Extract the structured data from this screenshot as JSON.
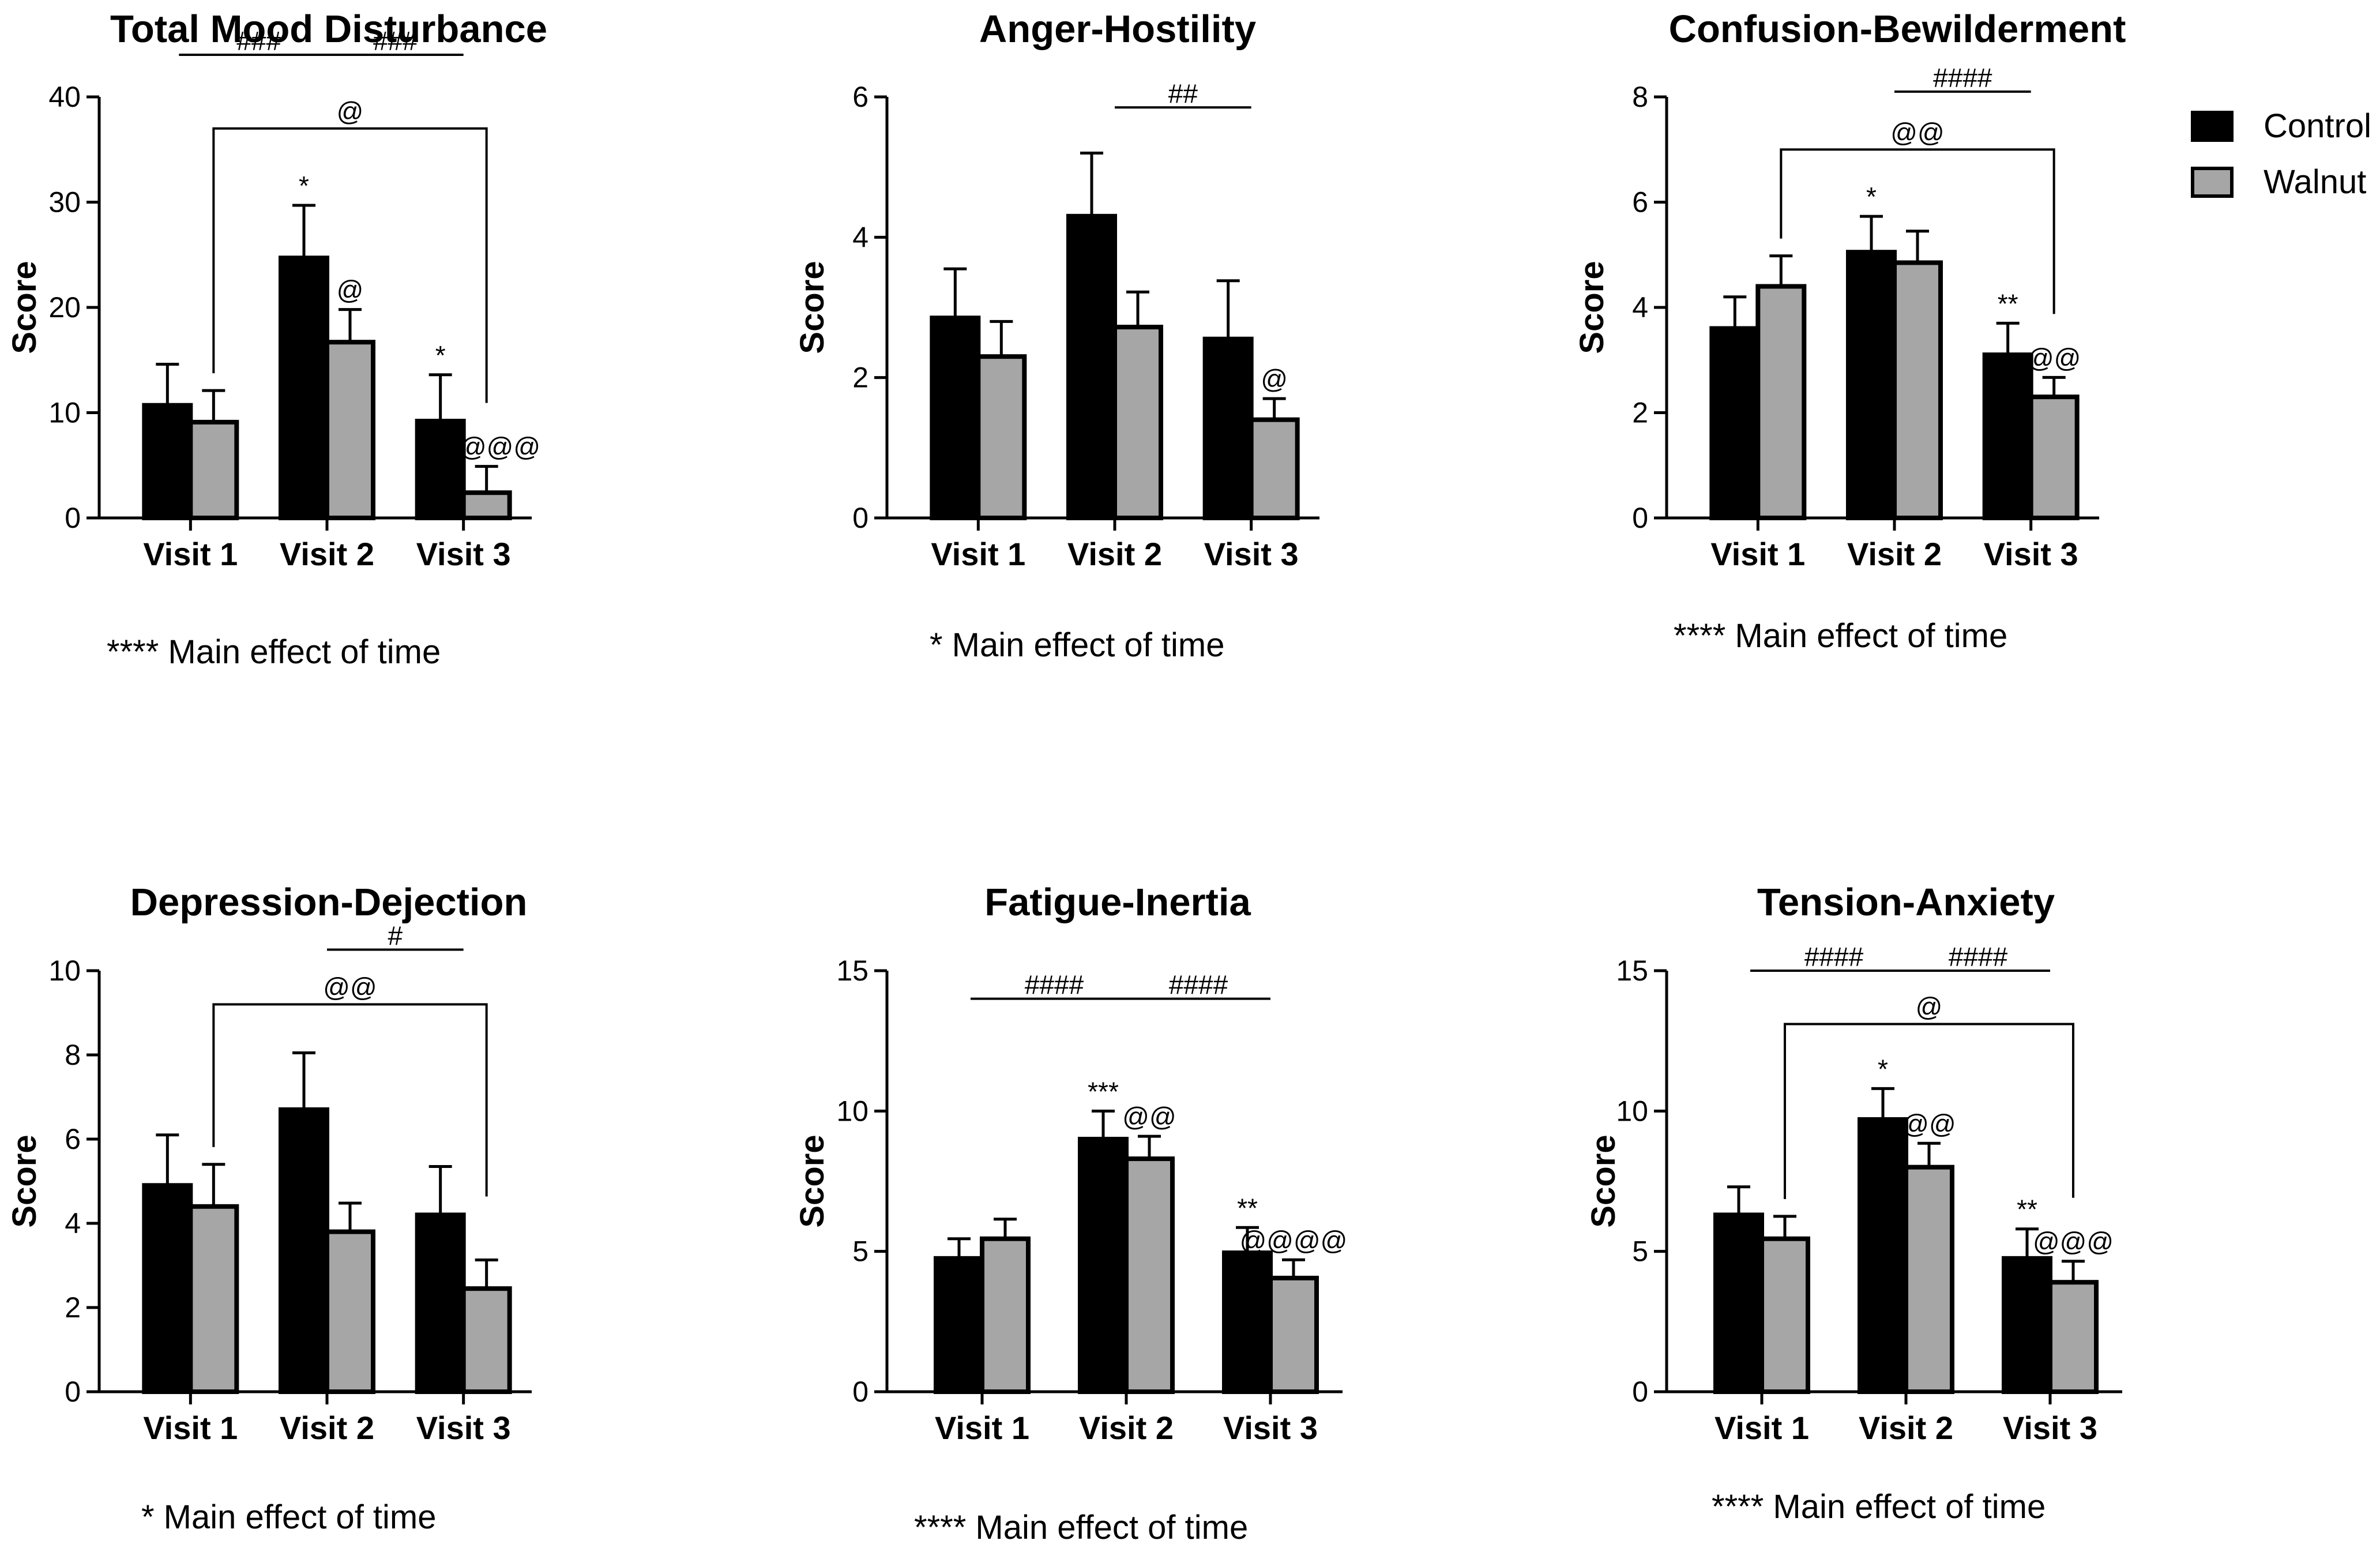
{
  "colors": {
    "control": "#000000",
    "walnut": "#a6a6a6",
    "stroke": "#000000"
  },
  "legend": [
    {
      "name": "Control",
      "color": "#000000"
    },
    {
      "name": "Walnut",
      "color": "#a6a6a6"
    }
  ],
  "chart_data": [
    {
      "type": "bar",
      "title": "Total Mood Disturbance",
      "ylabel": "Score",
      "categories": [
        "Visit 1",
        "Visit 2",
        "Visit 3"
      ],
      "ylim": [
        0,
        40
      ],
      "yticks": [
        0,
        10,
        20,
        30,
        40
      ],
      "series": [
        {
          "name": "Control",
          "values": [
            10.7,
            24.7,
            9.2
          ],
          "errors": [
            3.9,
            5.0,
            4.4
          ]
        },
        {
          "name": "Walnut",
          "values": [
            9.1,
            16.7,
            2.4
          ],
          "errors": [
            3.0,
            3.1,
            2.5
          ]
        }
      ],
      "bar_labels": [
        {
          "cat": 1,
          "series": 0,
          "text": "*"
        },
        {
          "cat": 1,
          "series": 1,
          "text": "@"
        },
        {
          "cat": 2,
          "series": 0,
          "text": "*"
        },
        {
          "cat": 2,
          "series": 1,
          "text": "@@@@"
        }
      ],
      "brackets": [
        {
          "kind": "line",
          "from": 0,
          "to": 1,
          "y": 44,
          "text": "###"
        },
        {
          "kind": "line",
          "from": 1,
          "to": 2,
          "y": 44,
          "text": "###"
        },
        {
          "kind": "bracket",
          "from": 0,
          "to": 2,
          "y": 37,
          "text": "@"
        }
      ],
      "footnote": "****  Main effect of time"
    },
    {
      "type": "bar",
      "title": "Anger-Hostility",
      "ylabel": "Score",
      "categories": [
        "Visit 1",
        "Visit 2",
        "Visit 3"
      ],
      "ylim": [
        0,
        6
      ],
      "yticks": [
        0,
        2,
        4,
        6
      ],
      "series": [
        {
          "name": "Control",
          "values": [
            2.85,
            4.3,
            2.55
          ],
          "errors": [
            0.7,
            0.9,
            0.83
          ]
        },
        {
          "name": "Walnut",
          "values": [
            2.3,
            2.72,
            1.4
          ],
          "errors": [
            0.5,
            0.5,
            0.3
          ]
        }
      ],
      "bar_labels": [
        {
          "cat": 2,
          "series": 1,
          "text": "@"
        }
      ],
      "brackets": [
        {
          "kind": "line",
          "from": 1,
          "to": 2,
          "y": 5.85,
          "text": "##"
        }
      ],
      "footnote": "* Main effect of time"
    },
    {
      "type": "bar",
      "title": "Confusion-Bewilderment",
      "ylabel": "Score",
      "categories": [
        "Visit 1",
        "Visit 2",
        "Visit 3"
      ],
      "ylim": [
        0,
        8
      ],
      "yticks": [
        0,
        2,
        4,
        6,
        8
      ],
      "series": [
        {
          "name": "Control",
          "values": [
            3.6,
            5.05,
            3.1
          ],
          "errors": [
            0.6,
            0.68,
            0.6
          ]
        },
        {
          "name": "Walnut",
          "values": [
            4.4,
            4.85,
            2.3
          ],
          "errors": [
            0.58,
            0.6,
            0.37
          ]
        }
      ],
      "bar_labels": [
        {
          "cat": 1,
          "series": 0,
          "text": "*"
        },
        {
          "cat": 2,
          "series": 0,
          "text": "**"
        },
        {
          "cat": 2,
          "series": 1,
          "text": "@@"
        }
      ],
      "brackets": [
        {
          "kind": "line",
          "from": 1,
          "to": 2,
          "y": 8.1,
          "text": "####"
        },
        {
          "kind": "bracket",
          "from": 0,
          "to": 2,
          "y": 7.0,
          "text": "@@"
        }
      ],
      "footnote": "****  Main effect of time"
    },
    {
      "type": "bar",
      "title": "Depression-Dejection",
      "ylabel": "Score",
      "categories": [
        "Visit 1",
        "Visit 2",
        "Visit 3"
      ],
      "ylim": [
        0,
        10
      ],
      "yticks": [
        0,
        2,
        4,
        6,
        8,
        10
      ],
      "series": [
        {
          "name": "Control",
          "values": [
            4.9,
            6.7,
            4.2
          ],
          "errors": [
            1.2,
            1.35,
            1.15
          ]
        },
        {
          "name": "Walnut",
          "values": [
            4.4,
            3.8,
            2.45
          ],
          "errors": [
            1.0,
            0.68,
            0.68
          ]
        }
      ],
      "bar_labels": [],
      "brackets": [
        {
          "kind": "line",
          "from": 1,
          "to": 2,
          "y": 10.5,
          "text": "#"
        },
        {
          "kind": "bracket",
          "from": 0,
          "to": 2,
          "y": 9.2,
          "text": "@@"
        }
      ],
      "footnote": "*  Main effect of time"
    },
    {
      "type": "bar",
      "title": "Fatigue-Inertia",
      "ylabel": "Score",
      "categories": [
        "Visit 1",
        "Visit 2",
        "Visit 3"
      ],
      "ylim": [
        0,
        15
      ],
      "yticks": [
        0,
        5,
        10,
        15
      ],
      "series": [
        {
          "name": "Control",
          "values": [
            4.75,
            9.0,
            4.95
          ],
          "errors": [
            0.7,
            1.0,
            0.9
          ]
        },
        {
          "name": "Walnut",
          "values": [
            5.45,
            8.3,
            4.05
          ],
          "errors": [
            0.7,
            0.8,
            0.65
          ]
        }
      ],
      "bar_labels": [
        {
          "cat": 1,
          "series": 0,
          "text": "***"
        },
        {
          "cat": 1,
          "series": 1,
          "text": "@@"
        },
        {
          "cat": 2,
          "series": 0,
          "text": "**"
        },
        {
          "cat": 2,
          "series": 1,
          "text": "@@@@"
        }
      ],
      "brackets": [
        {
          "kind": "line",
          "from": 0,
          "to": 1,
          "y": 14.0,
          "text": "####"
        },
        {
          "kind": "line",
          "from": 1,
          "to": 2,
          "y": 14.0,
          "text": "####"
        }
      ],
      "footnote": "**** Main effect of time"
    },
    {
      "type": "bar",
      "title": "Tension-Anxiety",
      "ylabel": "Score",
      "categories": [
        "Visit 1",
        "Visit 2",
        "Visit 3"
      ],
      "ylim": [
        0,
        15
      ],
      "yticks": [
        0,
        5,
        10,
        15
      ],
      "series": [
        {
          "name": "Control",
          "values": [
            6.3,
            9.7,
            4.75
          ],
          "errors": [
            1.0,
            1.1,
            1.05
          ]
        },
        {
          "name": "Walnut",
          "values": [
            5.45,
            8.0,
            3.9
          ],
          "errors": [
            0.8,
            0.85,
            0.75
          ]
        }
      ],
      "bar_labels": [
        {
          "cat": 1,
          "series": 0,
          "text": "*"
        },
        {
          "cat": 1,
          "series": 1,
          "text": "@@"
        },
        {
          "cat": 2,
          "series": 0,
          "text": "**"
        },
        {
          "cat": 2,
          "series": 1,
          "text": "@@@"
        }
      ],
      "brackets": [
        {
          "kind": "line",
          "from": 0,
          "to": 1,
          "y": 15.0,
          "text": "####"
        },
        {
          "kind": "line",
          "from": 1,
          "to": 2,
          "y": 15.0,
          "text": "####"
        },
        {
          "kind": "bracket",
          "from": 0,
          "to": 2,
          "y": 13.1,
          "text": "@"
        }
      ],
      "footnote": "****  Main effect of time"
    }
  ]
}
